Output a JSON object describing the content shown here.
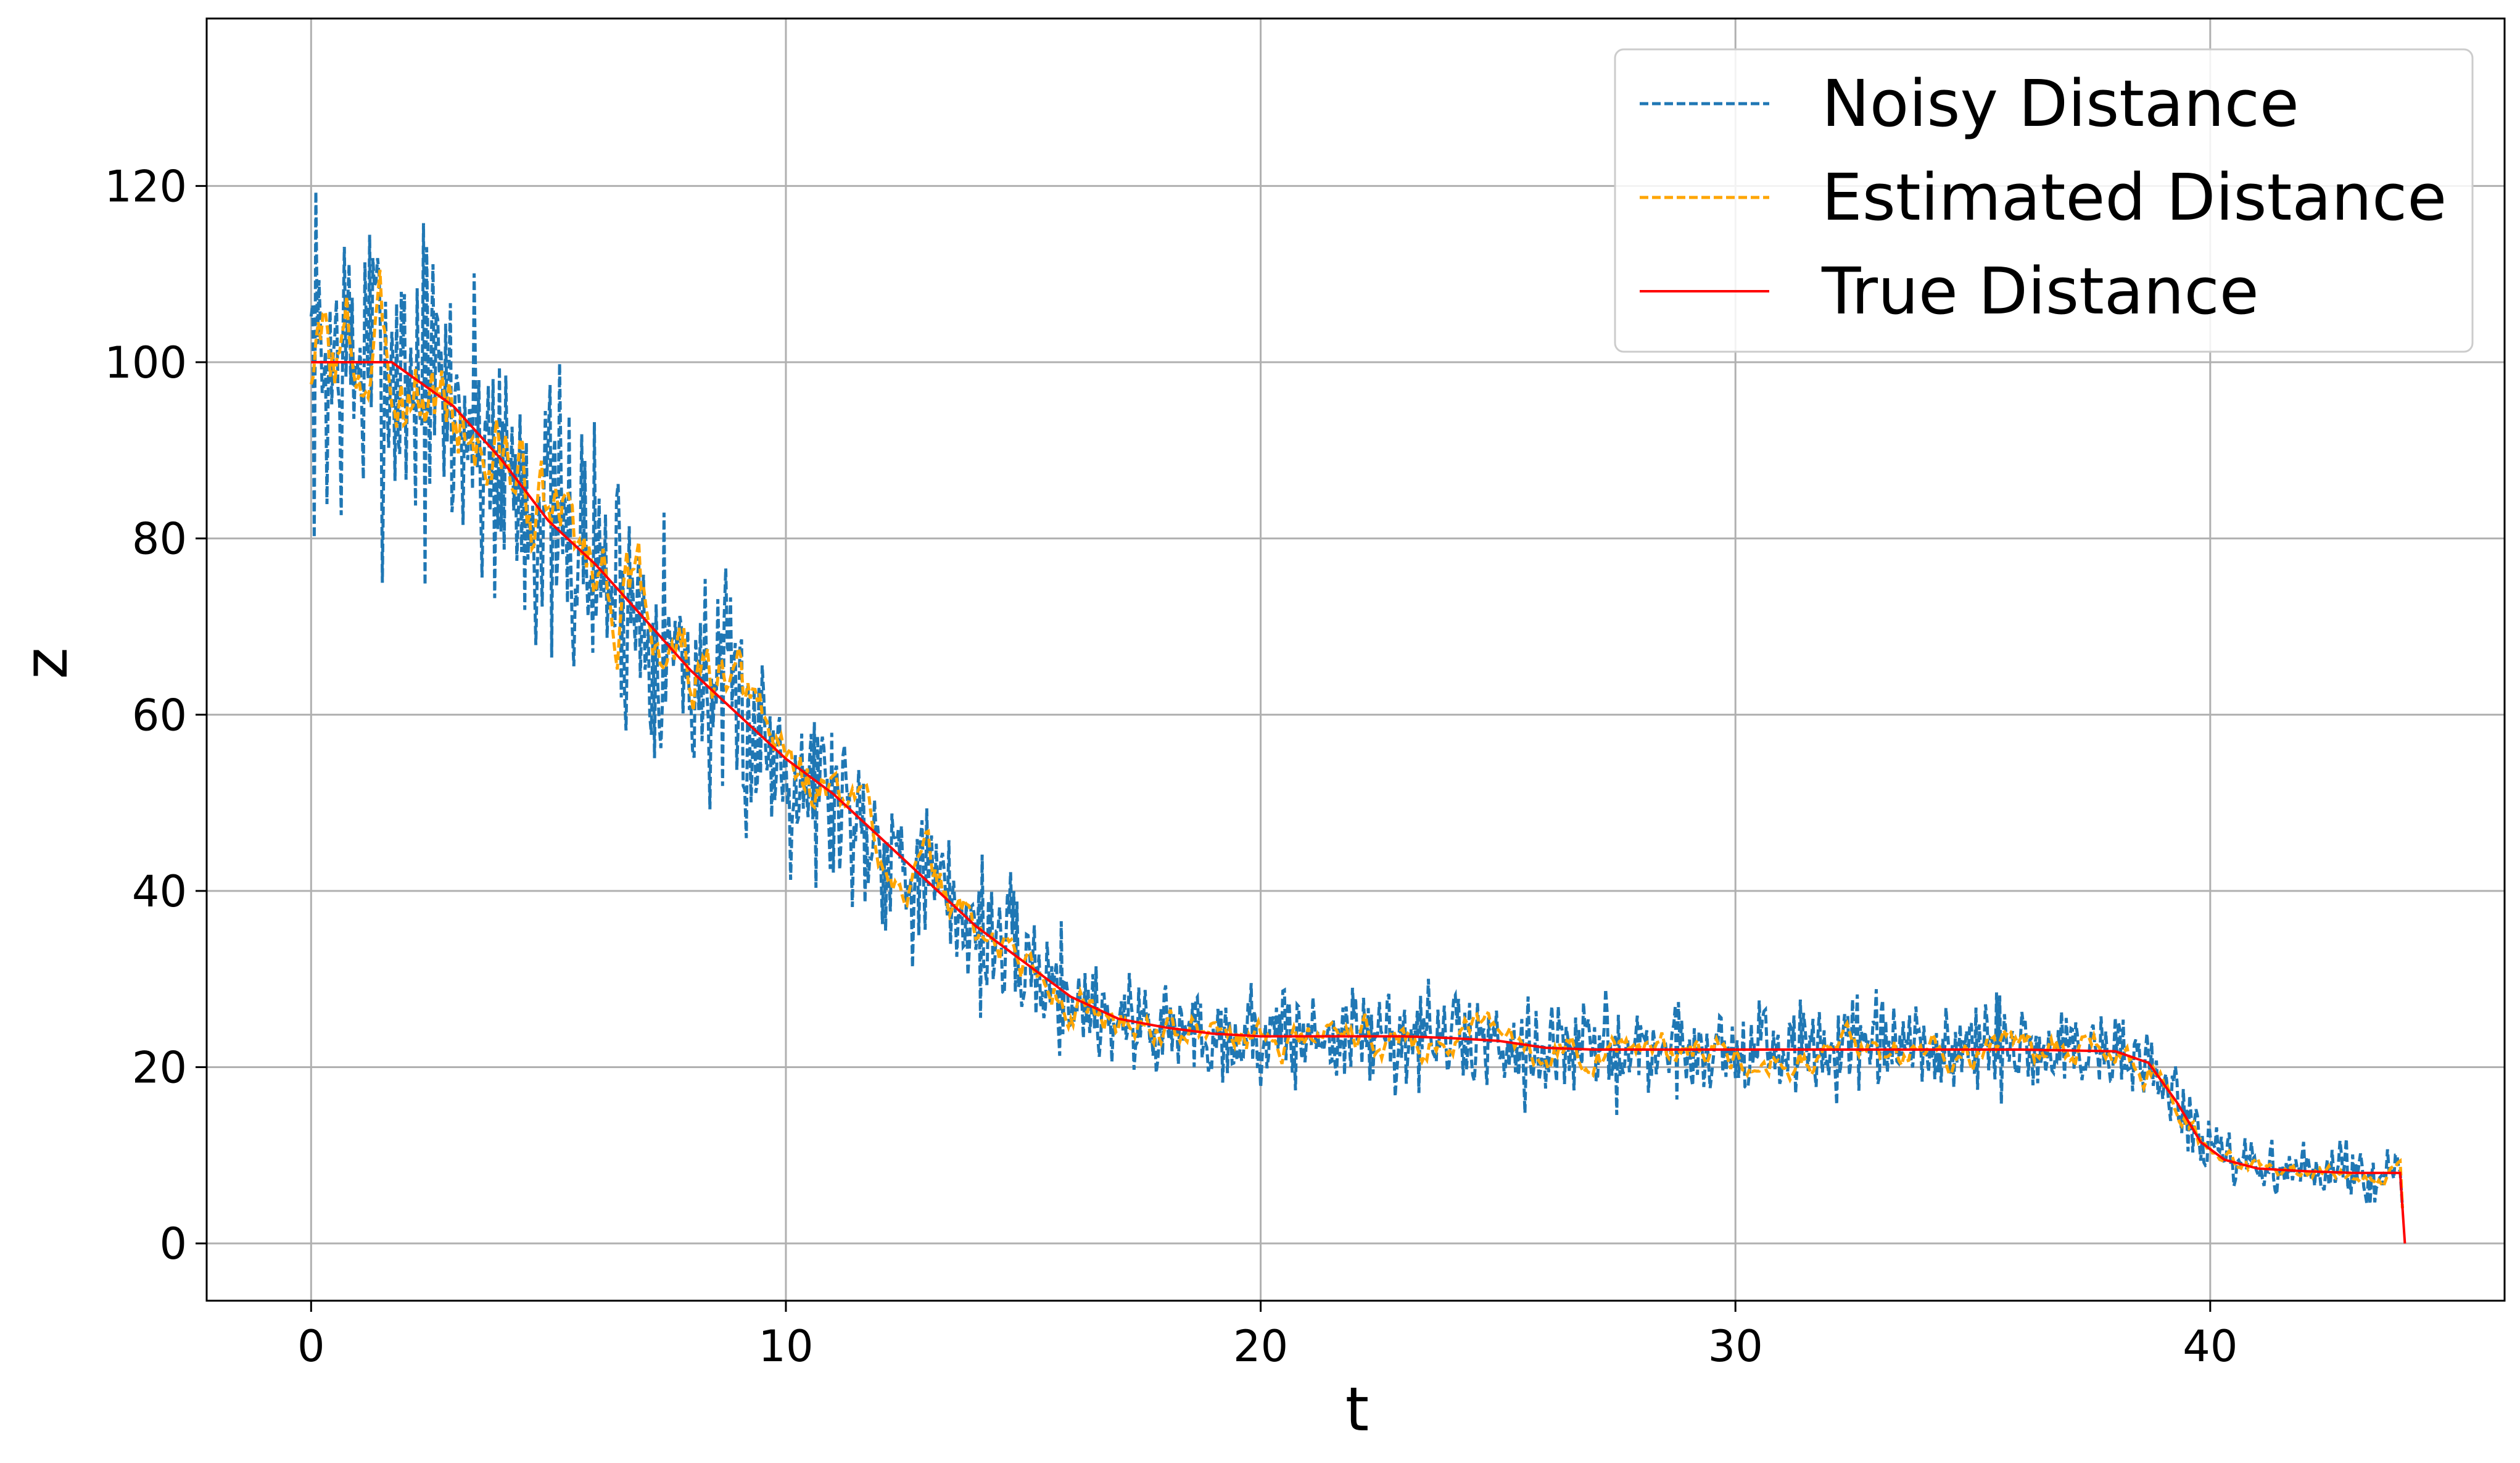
{
  "chart_data": {
    "type": "line",
    "title": "",
    "xlabel": "t",
    "ylabel": "z",
    "xlim": [
      -2.2,
      46.2
    ],
    "ylim": [
      -6.5,
      139.0
    ],
    "xticks": [
      0,
      10,
      20,
      30,
      40
    ],
    "yticks": [
      0,
      20,
      40,
      60,
      80,
      100,
      120
    ],
    "grid": true,
    "legend": {
      "position": "top-right"
    },
    "series": [
      {
        "name": "Noisy Distance",
        "style": "dashed",
        "color": "#1f77b4",
        "noise_amplitude": 0.09,
        "seed": 7
      },
      {
        "name": "Estimated Distance",
        "style": "dashed",
        "color": "#ffa500",
        "noise_amplitude": 0.045,
        "seed": 3
      },
      {
        "name": "True Distance",
        "style": "solid",
        "color": "#ff0000",
        "points": [
          [
            0,
            100
          ],
          [
            1.7,
            100
          ],
          [
            3,
            95
          ],
          [
            4,
            89
          ],
          [
            5,
            82
          ],
          [
            6,
            77
          ],
          [
            7,
            71
          ],
          [
            8,
            65
          ],
          [
            9,
            60
          ],
          [
            10,
            55
          ],
          [
            11,
            51
          ],
          [
            12,
            46
          ],
          [
            13,
            41
          ],
          [
            14,
            36
          ],
          [
            15,
            32
          ],
          [
            16,
            28
          ],
          [
            17,
            25.5
          ],
          [
            18,
            24.5
          ],
          [
            19,
            23.8
          ],
          [
            20,
            23.5
          ],
          [
            21,
            23.5
          ],
          [
            22,
            23.5
          ],
          [
            23,
            23.5
          ],
          [
            24,
            23.3
          ],
          [
            25,
            23
          ],
          [
            26,
            22.2
          ],
          [
            27,
            22
          ],
          [
            28,
            22
          ],
          [
            30,
            22
          ],
          [
            32,
            22
          ],
          [
            34,
            22
          ],
          [
            36,
            22
          ],
          [
            38,
            21.8
          ],
          [
            38.7,
            20.5
          ],
          [
            39.3,
            16
          ],
          [
            39.8,
            11.5
          ],
          [
            40.3,
            9.5
          ],
          [
            41,
            8.5
          ],
          [
            42,
            8.2
          ],
          [
            43,
            8
          ],
          [
            44,
            8
          ],
          [
            44.1,
            0
          ]
        ]
      }
    ]
  }
}
